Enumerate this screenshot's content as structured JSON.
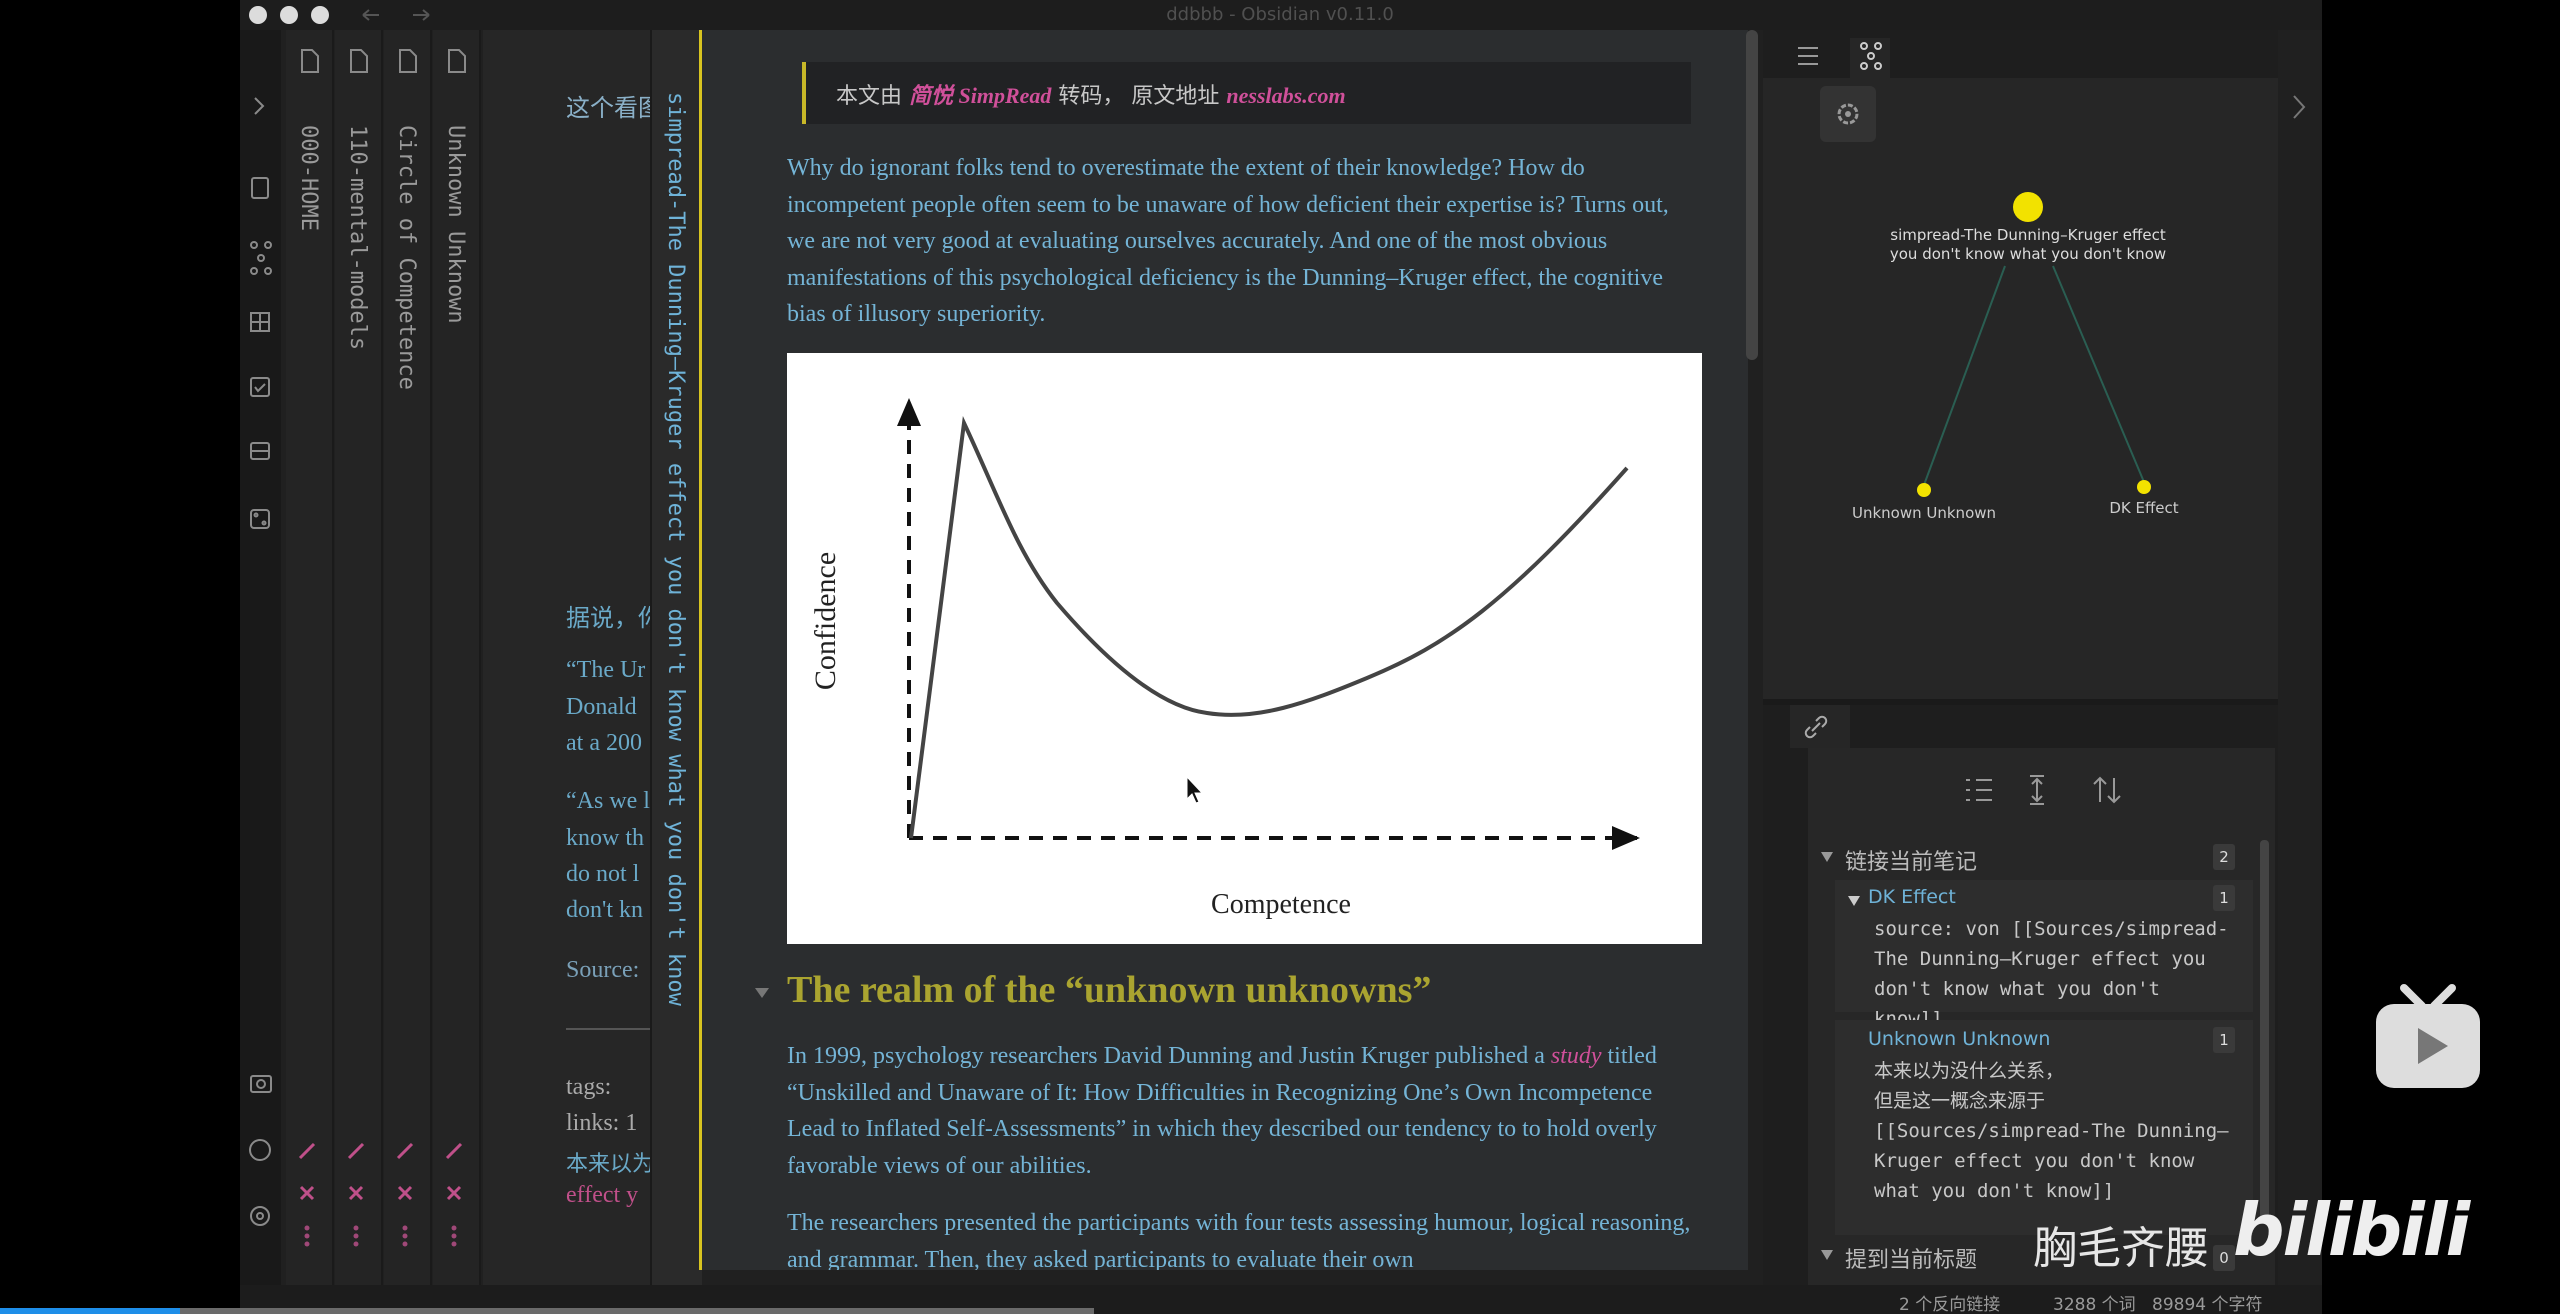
{
  "window": {
    "title": "ddbbb - Obsidian v0.11.0"
  },
  "collapsed_tabs": [
    "000-HOME",
    "110-mental-models",
    "Circle of Competence",
    "Unknown Unknown"
  ],
  "background_pane": {
    "lines": [
      "这个看图",
      "据说，你",
      "“The Ur",
      "Donald",
      "at a 200",
      "“As we l",
      "know th",
      "do not l",
      "don't kn",
      "Source:",
      "tags:",
      "links: 1",
      "本来以为",
      "effect y"
    ]
  },
  "active_note": {
    "tab_title": "simpread-The Dunning–Kruger effect you don't know what you don't know",
    "callout": {
      "prefix": "本文由",
      "source": "简悦 SimpRead",
      "middle": "转码， 原文地址",
      "link": "nesslabs.com"
    },
    "intro": "Why do ignorant folks tend to overestimate the extent of their knowledge? How do incompetent people often seem to be unaware of how deficient their expertise is? Turns out, we are not very good at evaluating ourselves accurately. And one of the most obvious manifestations of this psychological deficiency is the Dunning–Kruger effect, the cognitive bias of illusory superiority.",
    "figure": {
      "y_label": "Confidence",
      "x_label": "Competence"
    },
    "heading": "The realm of the “unknown unknowns”",
    "paragraph_1": {
      "before": "In 1999, psychology researchers David Dunning and Justin Kruger published a",
      "link": "study",
      "after": "titled “Unskilled and Unaware of It: How Difficulties in Recognizing One’s Own Incompetence Lead to Inflated Self-Assessments” in which they described our tendency to to hold overly favorable views of our abilities."
    },
    "paragraph_2": "The researchers presented the participants with four tests assessing humour, logical reasoning, and grammar. Then, they asked participants to evaluate their own"
  },
  "graph_view": {
    "nodes": [
      {
        "label": "simpread-The Dunning–Kruger effect you don't know what you don't know"
      },
      {
        "label": "Unknown Unknown"
      },
      {
        "label": "DK Effect"
      }
    ]
  },
  "backlinks": {
    "linked": {
      "title": "链接当前笔记",
      "count": 2,
      "items": [
        {
          "name": "DK Effect",
          "count": 1,
          "context": "source: von [[Sources/simpread-The Dunning–Kruger effect you don't know what you don't know]]"
        },
        {
          "name": "Unknown Unknown",
          "count": 1,
          "context": "本来以为没什么关系，\n但是这一概念来源于\n[[Sources/simpread-The Dunning–Kruger effect you don't know what you don't know]]"
        }
      ]
    },
    "unlinked": {
      "title": "提到当前标题",
      "count": 0
    }
  },
  "status_bar": {
    "backlinks": "2 个反向链接",
    "words": "3288 个词",
    "chars": "89894 个字符"
  },
  "watermark": {
    "uploader": "胸毛齐腰",
    "site": "bilibili"
  }
}
